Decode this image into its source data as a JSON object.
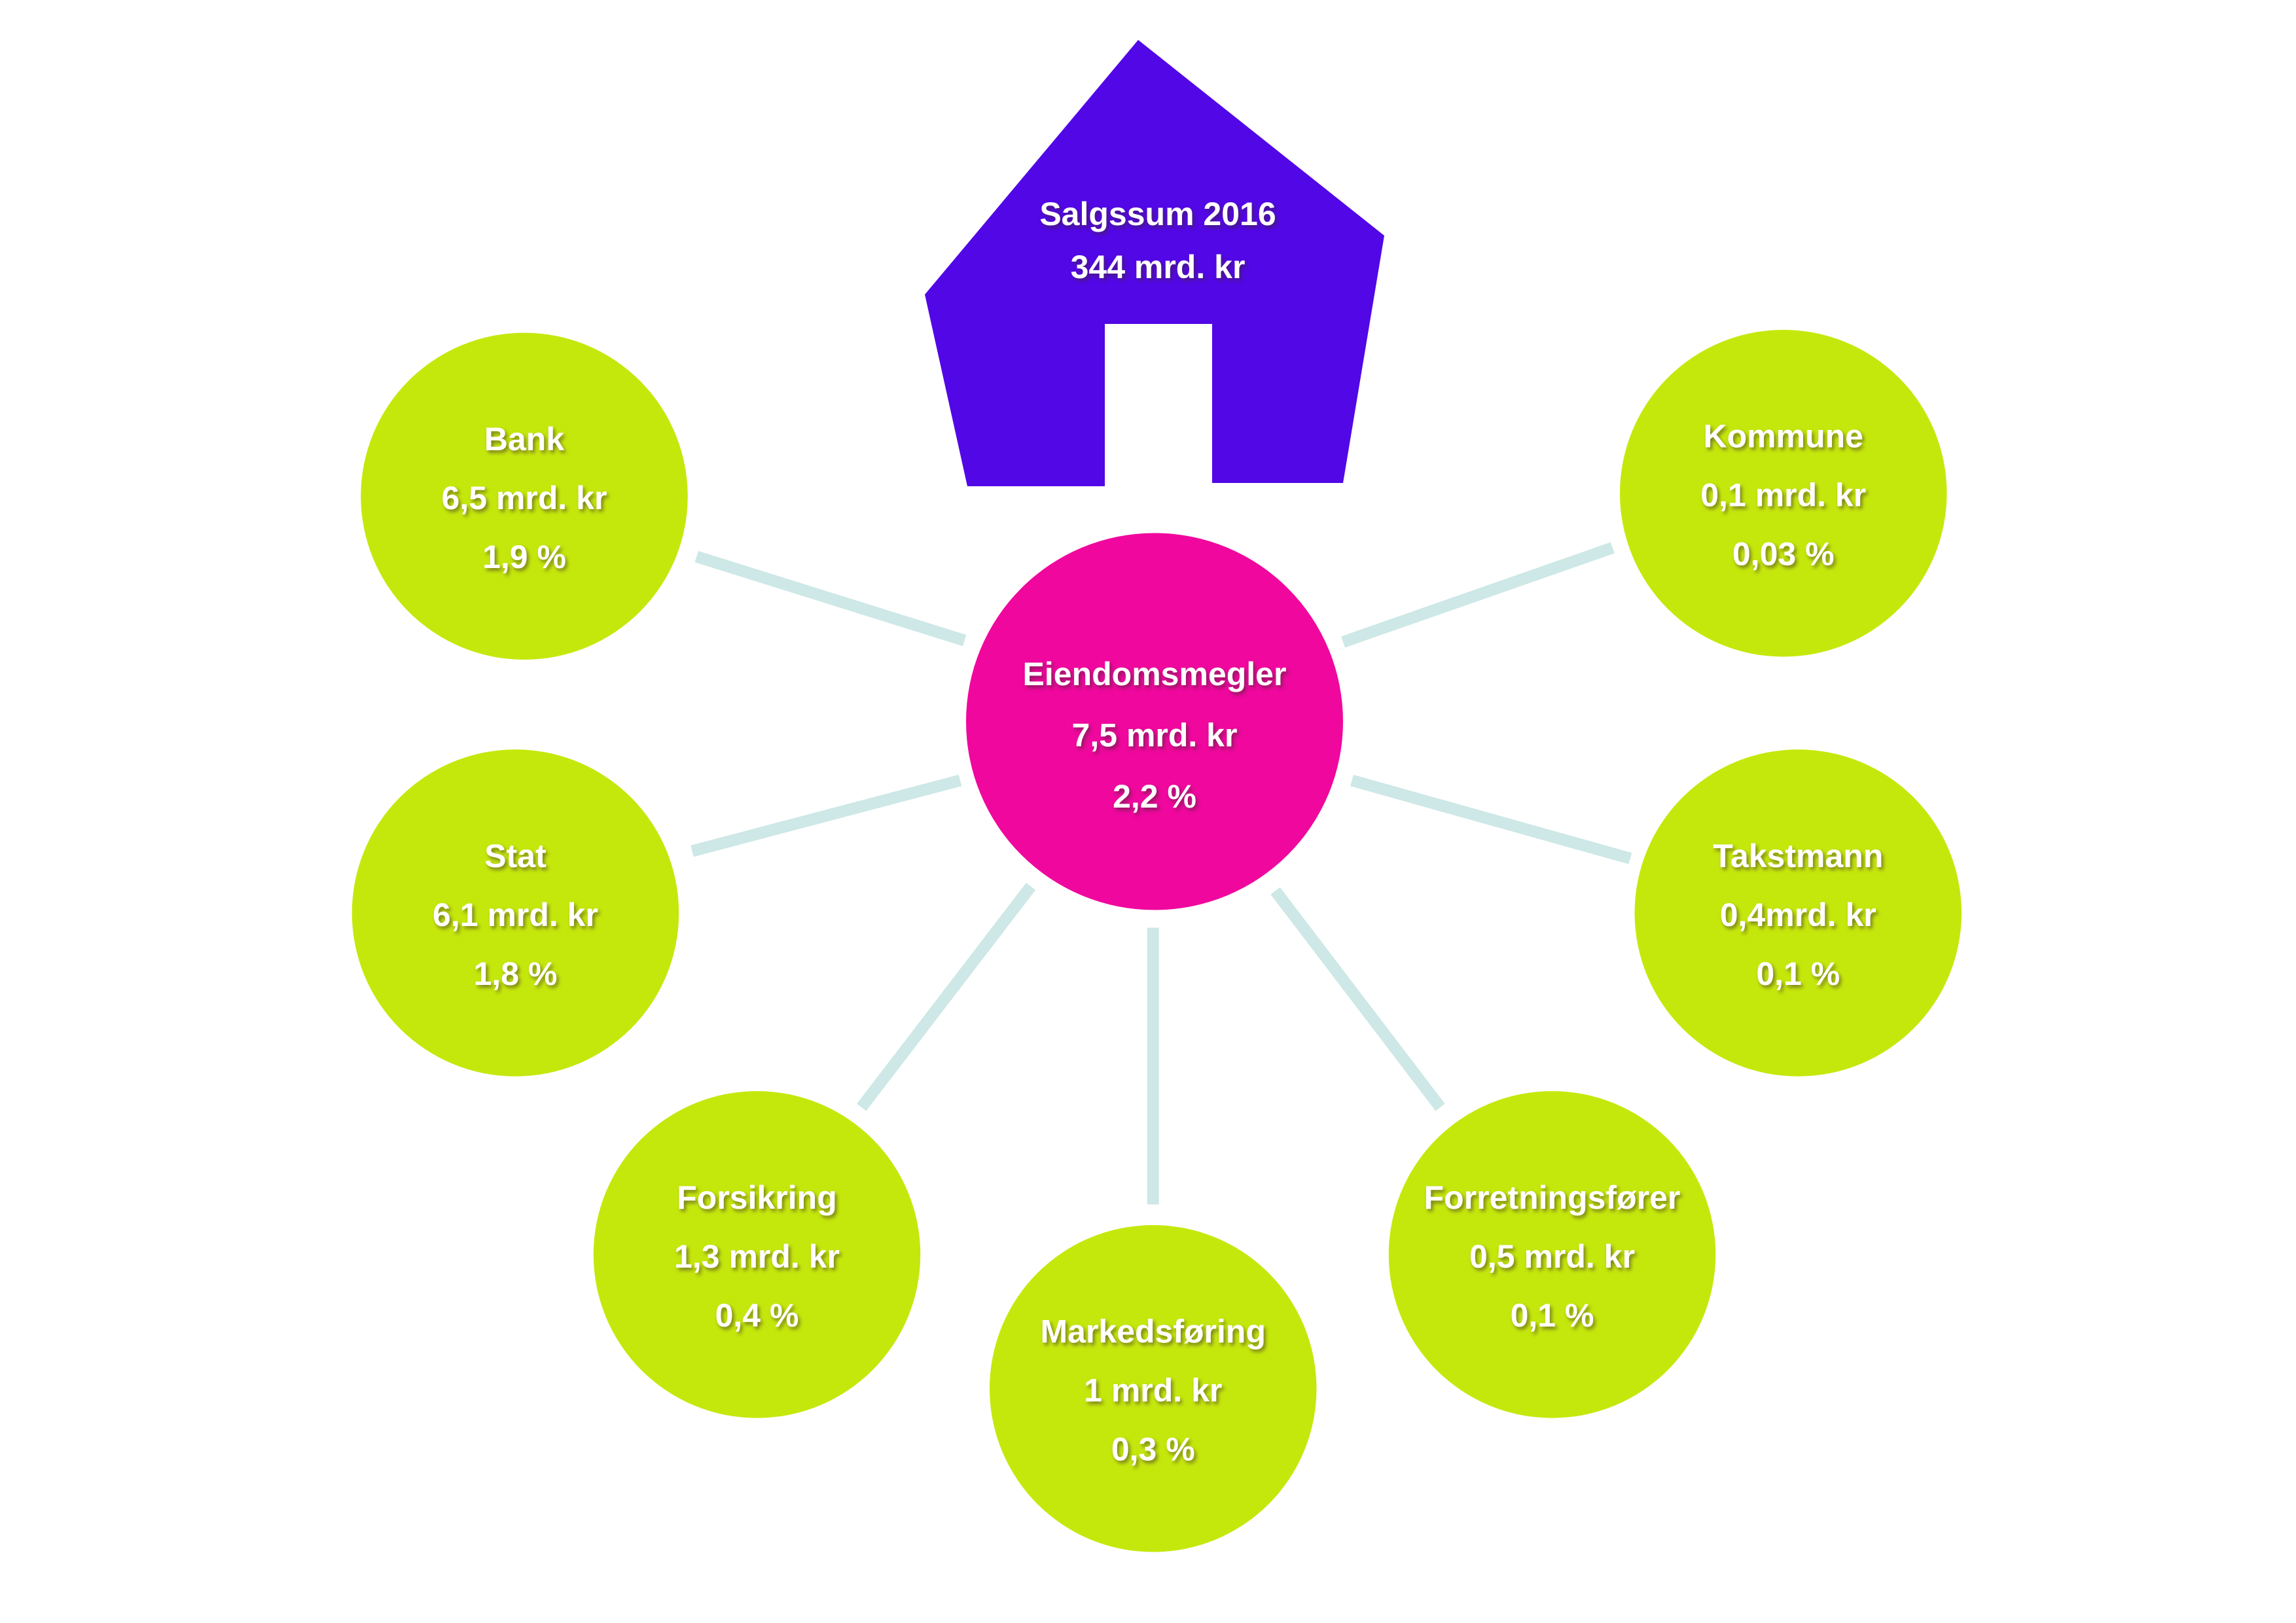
{
  "house": {
    "title": "Salgssum 2016",
    "value": "344 mrd. kr"
  },
  "center": {
    "label": "Eiendomsmegler",
    "amount": "7,5 mrd. kr",
    "share": "2,2 %"
  },
  "nodes": [
    {
      "label": "Bank",
      "amount": "6,5 mrd. kr",
      "share": "1,9 %"
    },
    {
      "label": "Kommune",
      "amount": "0,1 mrd. kr",
      "share": "0,03 %"
    },
    {
      "label": "Stat",
      "amount": "6,1 mrd. kr",
      "share": "1,8 %"
    },
    {
      "label": "Takstmann",
      "amount": "0,4mrd. kr",
      "share": "0,1 %"
    },
    {
      "label": "Forsikring",
      "amount": "1,3 mrd. kr",
      "share": "0,4 %"
    },
    {
      "label": "Forretningsfører",
      "amount": "0,5 mrd. kr",
      "share": "0,1 %"
    },
    {
      "label": "Markedsføring",
      "amount": "1 mrd. kr",
      "share": "0,3 %"
    }
  ]
}
